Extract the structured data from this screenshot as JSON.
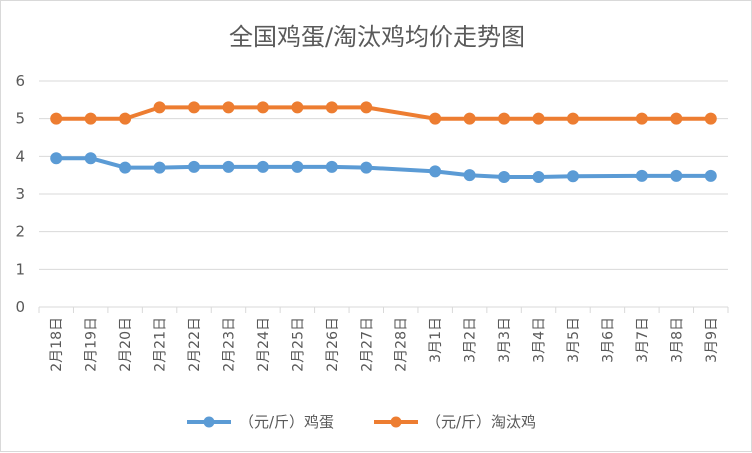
{
  "chart_data": {
    "type": "line",
    "title": "全国鸡蛋/淘汰鸡均价走势图",
    "xlabel": "",
    "ylabel": "",
    "categories": [
      "2月18日",
      "2月19日",
      "2月20日",
      "2月21日",
      "2月22日",
      "2月23日",
      "2月24日",
      "2月25日",
      "2月26日",
      "2月27日",
      "2月28日",
      "3月1日",
      "3月2日",
      "3月3日",
      "3月4日",
      "3月5日",
      "3月6日",
      "3月7日",
      "3月8日",
      "3月9日"
    ],
    "ylim": [
      0,
      6
    ],
    "yticks": [
      0,
      1,
      2,
      3,
      4,
      5,
      6
    ],
    "grid": true,
    "legend": "bottom",
    "series": [
      {
        "name": "（元/斤）鸡蛋",
        "color": "#5b9bd5",
        "values": [
          3.95,
          3.95,
          3.7,
          3.7,
          3.72,
          3.72,
          3.72,
          3.72,
          3.72,
          3.7,
          null,
          3.6,
          3.5,
          3.45,
          3.45,
          3.47,
          null,
          3.48,
          3.48,
          3.48
        ]
      },
      {
        "name": "（元/斤）淘汰鸡",
        "color": "#ed7d31",
        "values": [
          5.0,
          5.0,
          5.0,
          5.3,
          5.3,
          5.3,
          5.3,
          5.3,
          5.3,
          5.3,
          null,
          5.0,
          5.0,
          5.0,
          5.0,
          5.0,
          null,
          5.0,
          5.0,
          5.0
        ]
      }
    ]
  }
}
